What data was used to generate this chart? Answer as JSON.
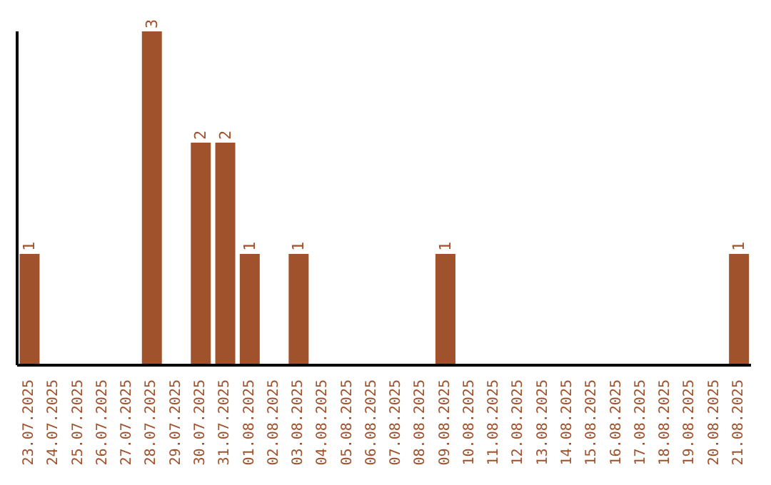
{
  "chart_data": {
    "type": "bar",
    "categories": [
      "23.07.2025",
      "24.07.2025",
      "25.07.2025",
      "26.07.2025",
      "27.07.2025",
      "28.07.2025",
      "29.07.2025",
      "30.07.2025",
      "31.07.2025",
      "01.08.2025",
      "02.08.2025",
      "03.08.2025",
      "04.08.2025",
      "05.08.2025",
      "06.08.2025",
      "07.08.2025",
      "08.08.2025",
      "09.08.2025",
      "10.08.2025",
      "11.08.2025",
      "12.08.2025",
      "13.08.2025",
      "14.08.2025",
      "15.08.2025",
      "16.08.2025",
      "17.08.2025",
      "18.08.2025",
      "19.08.2025",
      "20.08.2025",
      "21.08.2025"
    ],
    "values": [
      1,
      0,
      0,
      0,
      0,
      3,
      0,
      2,
      2,
      1,
      0,
      1,
      0,
      0,
      0,
      0,
      0,
      1,
      0,
      0,
      0,
      0,
      0,
      0,
      0,
      0,
      0,
      0,
      0,
      1
    ],
    "value_labels": [
      "1",
      null,
      null,
      null,
      null,
      "3",
      null,
      "2",
      "2",
      "1",
      null,
      "1",
      null,
      null,
      null,
      null,
      null,
      "1",
      null,
      null,
      null,
      null,
      null,
      null,
      null,
      null,
      null,
      null,
      null,
      "1"
    ],
    "color": "#a0522d",
    "grid": false,
    "tick_labels": "x"
  }
}
